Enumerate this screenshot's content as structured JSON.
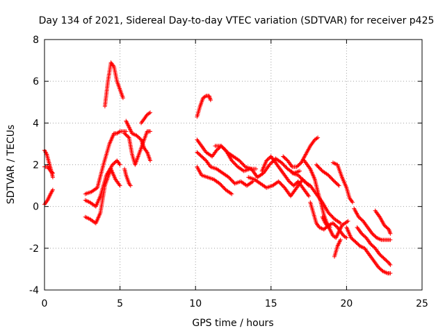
{
  "chart_data": {
    "type": "scatter",
    "title": "Day 134 of 2021, Sidereal Day-to-day VTEC variation (SDTVAR) for receiver p425",
    "xlabel": "GPS time / hours",
    "ylabel": "SDTVAR / TECUs",
    "xlim": [
      0,
      25
    ],
    "ylim": [
      -4,
      8
    ],
    "xticks": [
      0,
      5,
      10,
      15,
      20,
      25
    ],
    "yticks": [
      -4,
      -2,
      0,
      2,
      4,
      6,
      8
    ],
    "grid": true,
    "marker": "+",
    "color": "#ff0000",
    "segments": [
      {
        "name": "s1",
        "points": [
          [
            0.0,
            2.7
          ],
          [
            0.15,
            2.5
          ],
          [
            0.3,
            2.1
          ],
          [
            0.45,
            1.7
          ],
          [
            0.55,
            1.4
          ]
        ]
      },
      {
        "name": "s2",
        "points": [
          [
            0.0,
            1.9
          ],
          [
            0.2,
            1.9
          ],
          [
            0.4,
            1.7
          ],
          [
            0.55,
            1.6
          ]
        ]
      },
      {
        "name": "s3",
        "points": [
          [
            0.0,
            0.1
          ],
          [
            0.2,
            0.3
          ],
          [
            0.4,
            0.6
          ],
          [
            0.55,
            0.8
          ]
        ]
      },
      {
        "name": "s4",
        "points": [
          [
            2.7,
            0.6
          ],
          [
            3.1,
            0.7
          ],
          [
            3.5,
            0.9
          ],
          [
            3.9,
            2.0
          ],
          [
            4.3,
            3.0
          ],
          [
            4.6,
            3.5
          ],
          [
            4.8,
            3.5
          ],
          [
            5.0,
            3.6
          ],
          [
            5.4,
            3.6
          ]
        ]
      },
      {
        "name": "s5",
        "points": [
          [
            2.7,
            0.3
          ],
          [
            3.0,
            0.2
          ],
          [
            3.4,
            0.0
          ],
          [
            3.7,
            0.5
          ],
          [
            4.1,
            1.5
          ],
          [
            4.5,
            2.0
          ],
          [
            4.8,
            2.2
          ],
          [
            5.0,
            2.0
          ]
        ]
      },
      {
        "name": "s6",
        "points": [
          [
            2.7,
            -0.5
          ],
          [
            3.0,
            -0.6
          ],
          [
            3.4,
            -0.8
          ],
          [
            3.7,
            -0.3
          ],
          [
            4.0,
            1.0
          ],
          [
            4.4,
            1.8
          ],
          [
            4.7,
            1.3
          ],
          [
            5.0,
            1.0
          ]
        ]
      },
      {
        "name": "s7",
        "points": [
          [
            4.0,
            4.8
          ],
          [
            4.2,
            6.0
          ],
          [
            4.4,
            6.9
          ],
          [
            4.6,
            6.7
          ],
          [
            4.8,
            6.0
          ],
          [
            5.0,
            5.6
          ],
          [
            5.2,
            5.2
          ]
        ]
      },
      {
        "name": "s8",
        "points": [
          [
            5.3,
            3.5
          ],
          [
            5.6,
            3.3
          ],
          [
            5.8,
            2.5
          ],
          [
            6.0,
            2.0
          ],
          [
            6.2,
            2.4
          ],
          [
            6.5,
            3.0
          ],
          [
            6.8,
            3.6
          ],
          [
            7.0,
            3.6
          ]
        ]
      },
      {
        "name": "s9",
        "points": [
          [
            5.4,
            4.1
          ],
          [
            5.6,
            3.8
          ],
          [
            5.8,
            3.5
          ],
          [
            6.1,
            3.4
          ],
          [
            6.4,
            3.2
          ],
          [
            6.6,
            2.8
          ],
          [
            6.8,
            2.6
          ],
          [
            7.0,
            2.2
          ]
        ]
      },
      {
        "name": "s10",
        "points": [
          [
            5.3,
            1.8
          ],
          [
            5.4,
            1.5
          ],
          [
            5.6,
            1.1
          ],
          [
            5.7,
            1.0
          ]
        ]
      },
      {
        "name": "s11",
        "points": [
          [
            6.4,
            4.0
          ],
          [
            6.6,
            4.2
          ],
          [
            6.8,
            4.4
          ],
          [
            7.0,
            4.5
          ]
        ]
      },
      {
        "name": "s12",
        "points": [
          [
            10.1,
            4.3
          ],
          [
            10.3,
            4.8
          ],
          [
            10.5,
            5.2
          ],
          [
            10.7,
            5.3
          ],
          [
            10.9,
            5.3
          ],
          [
            11.0,
            5.1
          ]
        ]
      },
      {
        "name": "s13",
        "points": [
          [
            10.1,
            3.2
          ],
          [
            10.4,
            2.9
          ],
          [
            10.7,
            2.6
          ],
          [
            11.1,
            2.4
          ],
          [
            11.4,
            2.7
          ],
          [
            11.7,
            2.9
          ],
          [
            12.0,
            2.7
          ],
          [
            12.4,
            2.2
          ],
          [
            12.8,
            1.9
          ],
          [
            13.2,
            1.7
          ],
          [
            13.6,
            1.8
          ],
          [
            14.0,
            1.8
          ]
        ]
      },
      {
        "name": "s14",
        "points": [
          [
            10.1,
            2.6
          ],
          [
            10.4,
            2.4
          ],
          [
            10.7,
            2.2
          ],
          [
            11.0,
            1.9
          ],
          [
            11.4,
            1.8
          ],
          [
            11.8,
            1.6
          ],
          [
            12.2,
            1.4
          ],
          [
            12.6,
            1.1
          ],
          [
            13.0,
            1.2
          ],
          [
            13.4,
            1.0
          ],
          [
            13.8,
            1.2
          ]
        ]
      },
      {
        "name": "s15",
        "points": [
          [
            10.1,
            1.9
          ],
          [
            10.4,
            1.5
          ],
          [
            10.8,
            1.4
          ],
          [
            11.2,
            1.3
          ],
          [
            11.6,
            1.1
          ],
          [
            12.0,
            0.8
          ],
          [
            12.4,
            0.6
          ]
        ]
      },
      {
        "name": "s16",
        "points": [
          [
            11.3,
            2.9
          ],
          [
            11.7,
            2.9
          ],
          [
            12.1,
            2.6
          ],
          [
            12.5,
            2.4
          ],
          [
            12.9,
            2.2
          ],
          [
            13.3,
            1.9
          ],
          [
            13.7,
            1.8
          ],
          [
            14.1,
            1.4
          ],
          [
            14.5,
            1.6
          ],
          [
            14.9,
            2.0
          ],
          [
            15.3,
            2.3
          ],
          [
            15.7,
            2.1
          ],
          [
            16.1,
            1.8
          ],
          [
            16.5,
            1.6
          ],
          [
            16.9,
            1.7
          ]
        ]
      },
      {
        "name": "s17",
        "points": [
          [
            13.5,
            1.4
          ],
          [
            13.9,
            1.3
          ],
          [
            14.3,
            1.1
          ],
          [
            14.7,
            0.9
          ],
          [
            15.1,
            1.0
          ],
          [
            15.5,
            1.2
          ],
          [
            15.9,
            0.9
          ],
          [
            16.3,
            0.5
          ],
          [
            16.7,
            0.9
          ],
          [
            17.1,
            1.3
          ],
          [
            17.5,
            1.0
          ]
        ]
      },
      {
        "name": "s18",
        "points": [
          [
            14.4,
            1.7
          ],
          [
            14.7,
            2.2
          ],
          [
            15.0,
            2.4
          ],
          [
            15.3,
            2.1
          ],
          [
            15.6,
            1.8
          ],
          [
            15.9,
            1.5
          ],
          [
            16.2,
            1.2
          ],
          [
            16.5,
            1.0
          ],
          [
            16.8,
            1.2
          ],
          [
            17.2,
            0.8
          ],
          [
            17.5,
            0.5
          ]
        ]
      },
      {
        "name": "s19",
        "points": [
          [
            15.8,
            2.4
          ],
          [
            16.1,
            2.2
          ],
          [
            16.4,
            1.9
          ],
          [
            16.7,
            1.9
          ],
          [
            17.0,
            2.1
          ],
          [
            17.3,
            2.5
          ],
          [
            17.6,
            2.9
          ],
          [
            17.9,
            3.2
          ],
          [
            18.1,
            3.3
          ]
        ]
      },
      {
        "name": "s20",
        "points": [
          [
            16.4,
            1.6
          ],
          [
            16.8,
            1.5
          ],
          [
            17.2,
            1.2
          ],
          [
            17.6,
            1.0
          ],
          [
            18.0,
            0.6
          ],
          [
            18.4,
            0.2
          ],
          [
            18.8,
            -0.3
          ],
          [
            19.2,
            -0.6
          ],
          [
            19.6,
            -0.8
          ]
        ]
      },
      {
        "name": "s21",
        "points": [
          [
            17.2,
            2.2
          ],
          [
            17.6,
            1.8
          ],
          [
            17.9,
            1.3
          ],
          [
            18.1,
            0.7
          ],
          [
            18.3,
            0.2
          ],
          [
            18.5,
            -0.4
          ],
          [
            18.7,
            -0.8
          ],
          [
            18.9,
            -1.0
          ]
        ]
      },
      {
        "name": "s22",
        "points": [
          [
            18.0,
            2.0
          ],
          [
            18.4,
            1.7
          ],
          [
            18.8,
            1.5
          ],
          [
            19.2,
            1.2
          ],
          [
            19.5,
            1.0
          ]
        ]
      },
      {
        "name": "s23",
        "points": [
          [
            17.6,
            0.2
          ],
          [
            17.8,
            -0.3
          ],
          [
            18.0,
            -0.8
          ],
          [
            18.2,
            -1.0
          ],
          [
            18.5,
            -1.1
          ],
          [
            18.8,
            -0.9
          ],
          [
            19.1,
            -0.8
          ],
          [
            19.4,
            -1.0
          ],
          [
            19.6,
            -1.2
          ],
          [
            19.8,
            -1.4
          ],
          [
            20.0,
            -1.5
          ]
        ]
      },
      {
        "name": "s24",
        "points": [
          [
            18.4,
            -0.5
          ],
          [
            18.6,
            -0.8
          ],
          [
            18.9,
            -1.1
          ],
          [
            19.1,
            -1.4
          ],
          [
            19.3,
            -1.5
          ],
          [
            19.5,
            -1.2
          ],
          [
            19.7,
            -0.9
          ],
          [
            19.9,
            -0.8
          ],
          [
            20.1,
            -0.7
          ]
        ]
      },
      {
        "name": "s25",
        "points": [
          [
            19.1,
            2.1
          ],
          [
            19.4,
            2.0
          ],
          [
            19.7,
            1.4
          ],
          [
            20.0,
            0.9
          ],
          [
            20.2,
            0.4
          ],
          [
            20.4,
            0.2
          ]
        ]
      },
      {
        "name": "s26",
        "points": [
          [
            20.0,
            -1.0
          ],
          [
            20.3,
            -1.5
          ],
          [
            20.6,
            -1.7
          ],
          [
            20.9,
            -1.9
          ],
          [
            21.2,
            -2.0
          ],
          [
            21.5,
            -2.3
          ],
          [
            21.8,
            -2.6
          ],
          [
            22.1,
            -2.9
          ],
          [
            22.4,
            -3.1
          ],
          [
            22.7,
            -3.2
          ],
          [
            22.9,
            -3.2
          ]
        ]
      },
      {
        "name": "s27",
        "points": [
          [
            20.5,
            -0.1
          ],
          [
            20.8,
            -0.5
          ],
          [
            21.1,
            -0.7
          ],
          [
            21.4,
            -1.0
          ],
          [
            21.7,
            -1.3
          ],
          [
            22.0,
            -1.5
          ],
          [
            22.3,
            -1.6
          ],
          [
            22.6,
            -1.6
          ],
          [
            22.9,
            -1.6
          ]
        ]
      },
      {
        "name": "s28",
        "points": [
          [
            20.7,
            -1.0
          ],
          [
            21.0,
            -1.3
          ],
          [
            21.3,
            -1.5
          ],
          [
            21.6,
            -1.8
          ],
          [
            21.9,
            -2.0
          ],
          [
            22.2,
            -2.3
          ],
          [
            22.5,
            -2.5
          ],
          [
            22.8,
            -2.7
          ],
          [
            22.9,
            -2.8
          ]
        ]
      },
      {
        "name": "s29",
        "points": [
          [
            21.9,
            -0.2
          ],
          [
            22.2,
            -0.5
          ],
          [
            22.5,
            -0.9
          ],
          [
            22.8,
            -1.1
          ],
          [
            22.9,
            -1.3
          ]
        ]
      },
      {
        "name": "s30",
        "points": [
          [
            19.2,
            -2.4
          ],
          [
            19.4,
            -1.9
          ],
          [
            19.6,
            -1.6
          ]
        ]
      }
    ]
  }
}
